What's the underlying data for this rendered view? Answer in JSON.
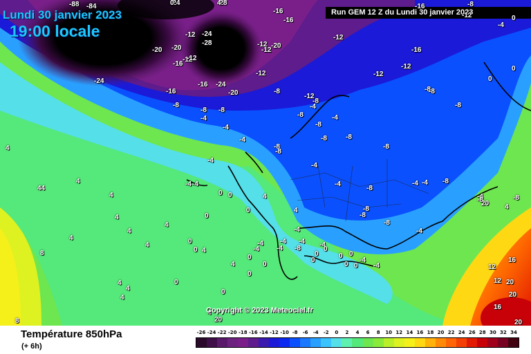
{
  "header": {
    "date": "Lundi 30 janvier 2023",
    "time": "19:00 locale",
    "run": "Run GEM 12 Z du Lundi 30 janvier 2023"
  },
  "map": {
    "copyright": "Copyright © 2023 Meteociel.fr",
    "isotherm_labels": [
      "-28",
      "-24",
      "-24",
      "-28",
      "-16",
      "-16",
      "-20",
      "-12",
      "-24",
      "-28",
      "-20",
      "-12",
      "-16",
      "-12",
      "-12",
      "-20",
      "-12",
      "-16",
      "-24",
      "-16",
      "-12",
      "-24",
      "-12",
      "-12",
      "-12",
      "-16",
      "-16",
      "-8",
      "-20",
      "-12",
      "-8",
      "-8",
      "-8",
      "-8",
      "-8",
      "-8",
      "-8",
      "-8",
      "-8",
      "-8",
      "-8",
      "-4",
      "-4",
      "-8",
      "-8",
      "-8",
      "-8",
      "-4",
      "-4",
      "-4",
      "-4",
      "-4",
      "-8",
      "-8",
      "-8",
      "-4",
      "-4",
      "-4",
      "-8",
      "-8",
      "-4",
      "-4",
      "-12",
      "-4",
      "-4",
      "-4",
      "-4",
      "-4",
      "-4",
      "-4",
      "-4",
      "-4",
      "-8",
      "-4",
      "-4",
      "-4",
      "0",
      "0",
      "0",
      "0",
      "0",
      "0",
      "0",
      "0",
      "0",
      "0",
      "0",
      "0",
      "0",
      "0",
      "0",
      "0",
      "0",
      "0",
      "0",
      "0",
      "0",
      "4",
      "4",
      "4",
      "4",
      "4",
      "4",
      "4",
      "4",
      "4",
      "4",
      "4",
      "4",
      "4",
      "4",
      "4",
      "4",
      "4",
      "4",
      "44",
      "8",
      "8",
      "12",
      "12",
      "16",
      "16",
      "20",
      "20",
      "20",
      "20",
      "20",
      "-8",
      "-8",
      "-8",
      "-8",
      "0",
      "4"
    ]
  },
  "footer": {
    "title": "Température 850hPa",
    "subtitle": "(+ 6h)",
    "scale_labels": [
      "-26",
      "-24",
      "-22",
      "-20",
      "-18",
      "-16",
      "-14",
      "-12",
      "-10",
      "-8",
      "-6",
      "-4",
      "-2",
      "0",
      "2",
      "4",
      "6",
      "8",
      "10",
      "12",
      "14",
      "16",
      "18",
      "20",
      "22",
      "24",
      "26",
      "28",
      "30",
      "32",
      "34"
    ],
    "scale_colors": [
      "#2a0a2a",
      "#3f0f48",
      "#5a1a6a",
      "#6e2280",
      "#7a1f8a",
      "#5e1c8c",
      "#3b1ab0",
      "#1a1ad8",
      "#0a28f0",
      "#0a50ff",
      "#1a78ff",
      "#29a0ff",
      "#3ac4ff",
      "#55dfe8",
      "#5ef0b0",
      "#55e87a",
      "#6ee650",
      "#8aea3a",
      "#b8ee2a",
      "#ddf220",
      "#f5f01a",
      "#ffd814",
      "#ffb20a",
      "#ff8a08",
      "#ff6406",
      "#f44004",
      "#e21a04",
      "#c80008",
      "#a0001a",
      "#780020",
      "#400010"
    ]
  }
}
